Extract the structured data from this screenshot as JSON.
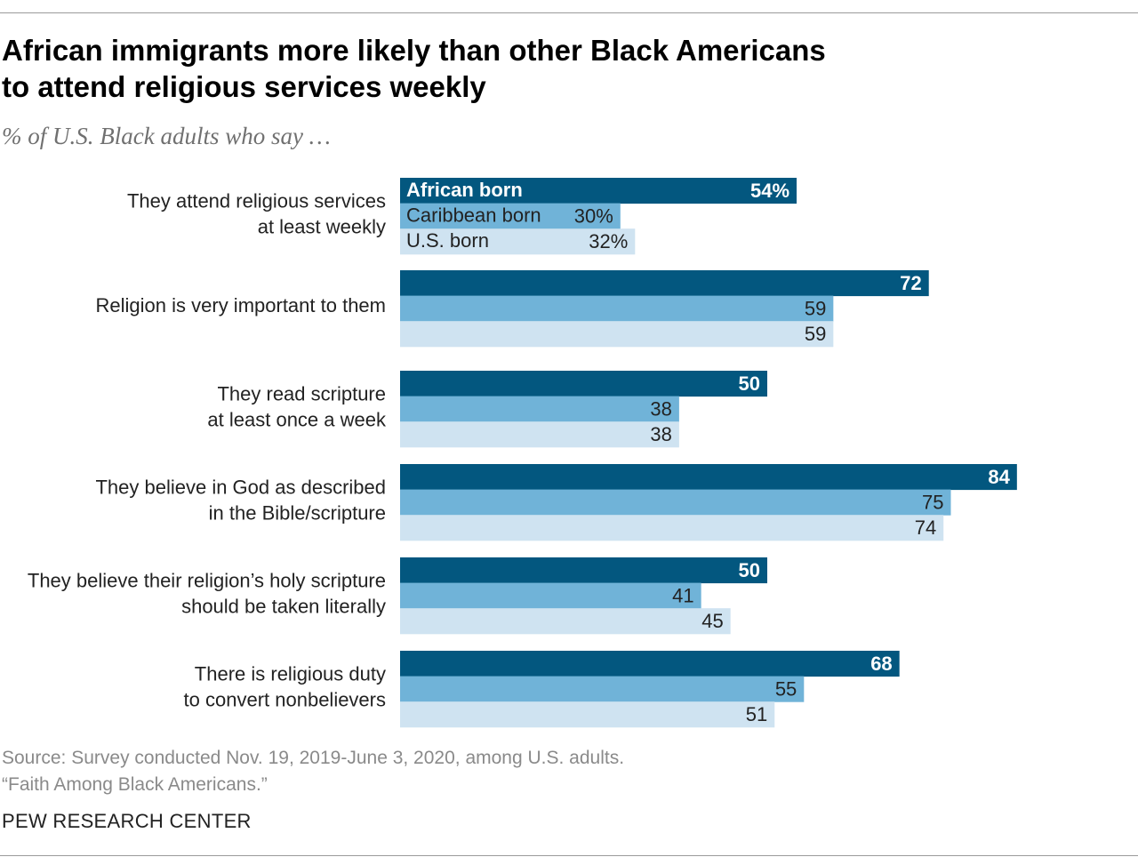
{
  "title_line1": "African immigrants more likely than other Black Americans",
  "title_line2": "to attend religious services weekly",
  "subtitle": "% of U.S. Black adults who say …",
  "source_line1": "Source: Survey conducted Nov. 19, 2019-June 3, 2020, among U.S. adults.",
  "source_line2": "“Faith Among Black Americans.”",
  "organization": "PEW RESEARCH CENTER",
  "chart_data": {
    "type": "bar",
    "orientation": "horizontal",
    "value_suffix_first_row": "%",
    "xlim": [
      0,
      100
    ],
    "categories": [
      [
        "They attend religious services",
        "at least weekly"
      ],
      [
        "Religion is very important to them"
      ],
      [
        "They read scripture",
        "at least once a week"
      ],
      [
        "They believe in God as described",
        "in the Bible/scripture"
      ],
      [
        "They believe their religion’s holy scripture",
        "should be taken literally"
      ],
      [
        "There is religious duty",
        "to convert nonbelievers"
      ]
    ],
    "series": [
      {
        "name": "African born",
        "color": "#03577f",
        "label_color": "#ffffff",
        "values": [
          54,
          72,
          50,
          84,
          50,
          68
        ]
      },
      {
        "name": "Caribbean born",
        "color": "#70b3d8",
        "label_color": "#222222",
        "values": [
          30,
          59,
          38,
          75,
          41,
          55
        ]
      },
      {
        "name": "U.S. born",
        "color": "#cfe3f1",
        "label_color": "#222222",
        "values": [
          32,
          59,
          38,
          74,
          45,
          51
        ]
      }
    ],
    "legend": "inline-in-first-group",
    "grid": false
  }
}
